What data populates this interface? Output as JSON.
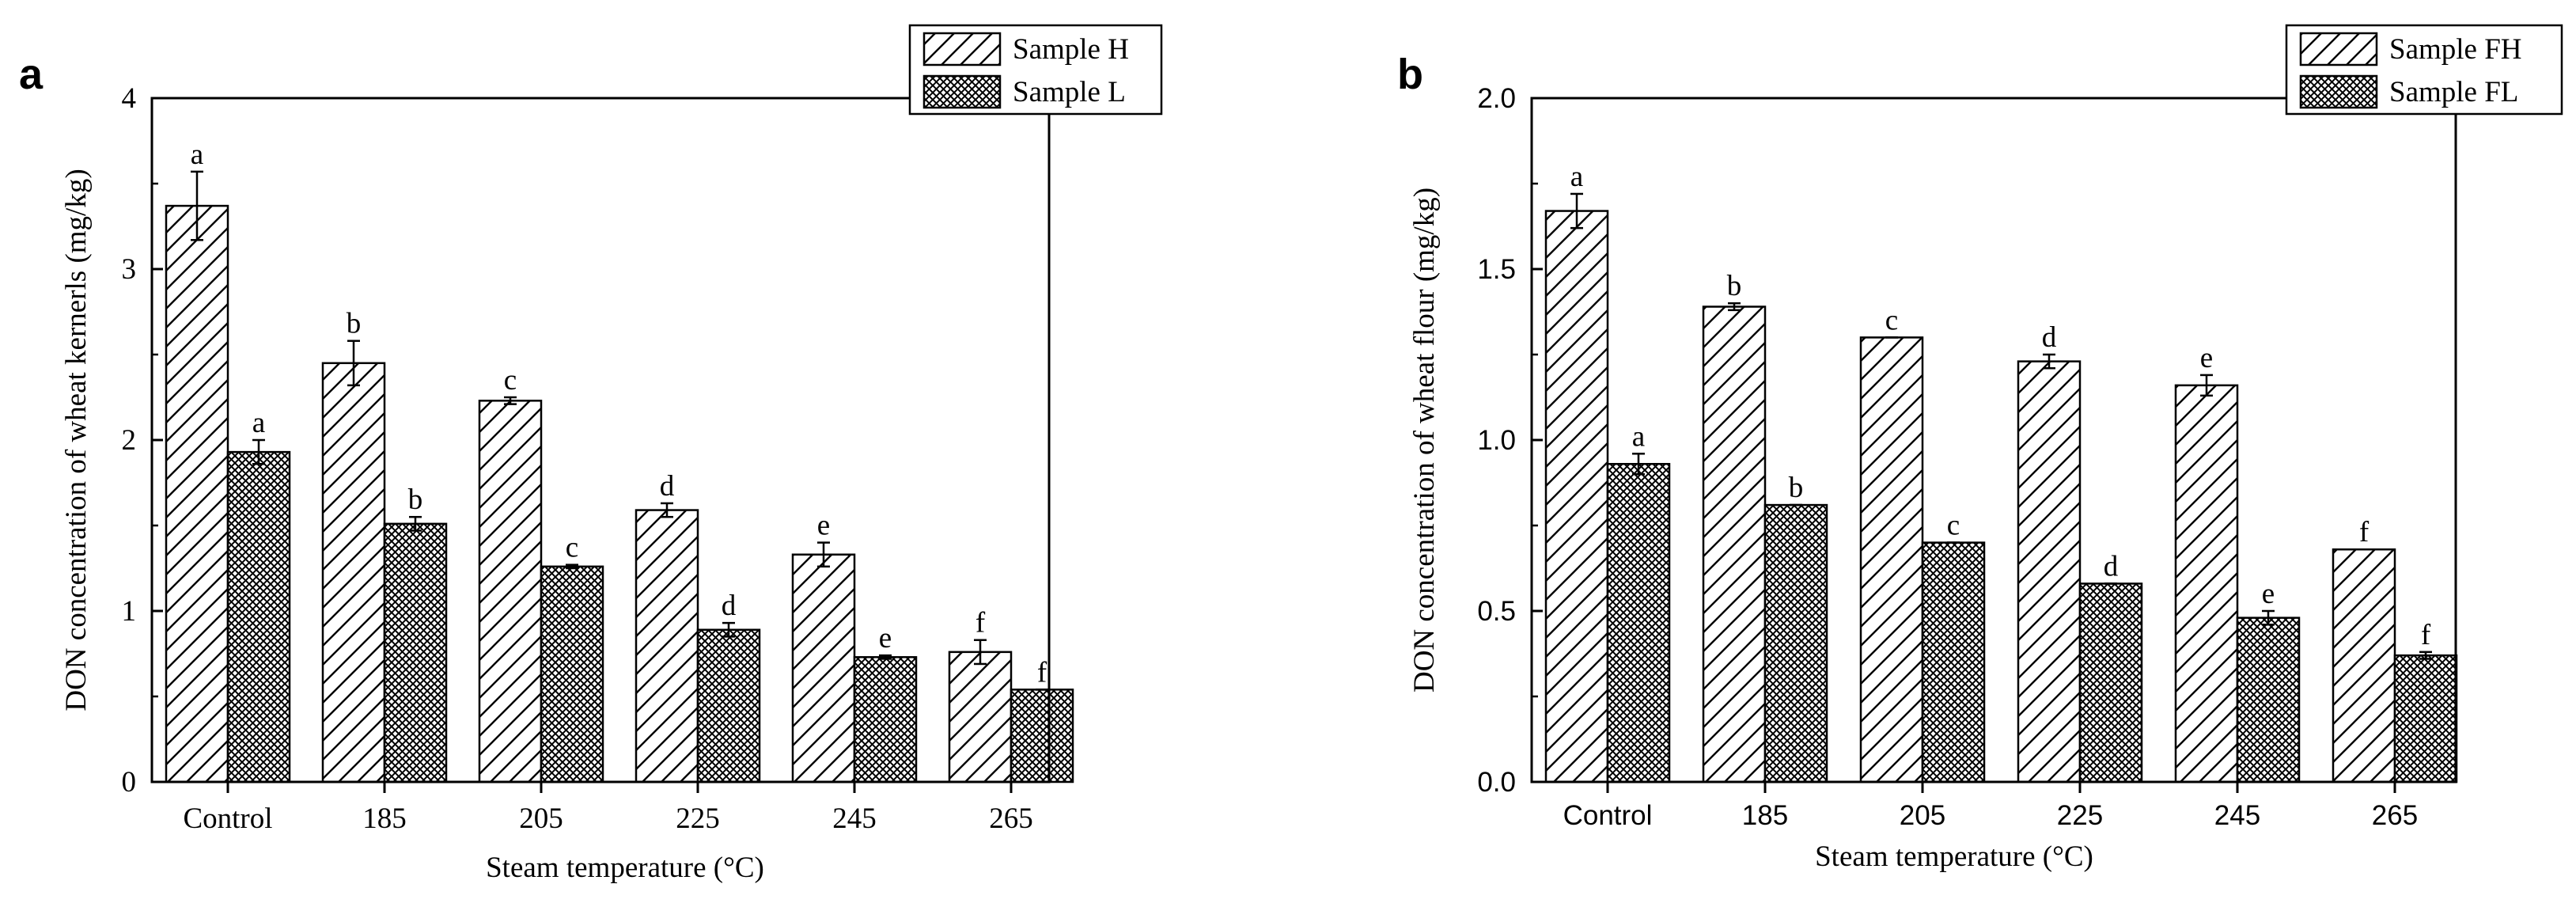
{
  "chart_data": [
    {
      "panel_label": "a",
      "type": "bar",
      "categories": [
        "Control",
        "185",
        "205",
        "225",
        "245",
        "265"
      ],
      "xlabel": "Steam temperature (°C)",
      "ylabel": "DON concentration of wheat kernerls (mg/kg)",
      "ylim": [
        0,
        4
      ],
      "yticks": [
        0,
        1,
        2,
        3,
        4
      ],
      "ytick_labels": [
        "0",
        "1",
        "2",
        "3",
        "4"
      ],
      "legend_position": "top-right",
      "series": [
        {
          "name": "Sample H",
          "pattern": "diagonal-hatch",
          "values": [
            3.37,
            2.45,
            2.23,
            1.59,
            1.33,
            0.76
          ],
          "errors": [
            0.2,
            0.13,
            0.02,
            0.04,
            0.07,
            0.07
          ],
          "letters": [
            "a",
            "b",
            "c",
            "d",
            "e",
            "f"
          ]
        },
        {
          "name": "Sample L",
          "pattern": "crosshatch",
          "values": [
            1.93,
            1.51,
            1.26,
            0.89,
            0.73,
            0.54
          ],
          "errors": [
            0.07,
            0.04,
            0.01,
            0.04,
            0.01,
            0.0
          ],
          "letters": [
            "a",
            "b",
            "c",
            "d",
            "e",
            "f"
          ]
        }
      ]
    },
    {
      "panel_label": "b",
      "type": "bar",
      "categories": [
        "Control",
        "185",
        "205",
        "225",
        "245",
        "265"
      ],
      "xlabel": "Steam temperature (°C)",
      "ylabel": "DON concentration of wheat flour (mg/kg)",
      "ylim": [
        0,
        2
      ],
      "yticks": [
        0,
        0.5,
        1,
        1.5,
        2
      ],
      "ytick_labels": [
        "0.0",
        "0.5",
        "1.0",
        "1.5",
        "2.0"
      ],
      "legend_position": "top-right",
      "series": [
        {
          "name": "Sample FH",
          "pattern": "diagonal-hatch",
          "values": [
            1.67,
            1.39,
            1.3,
            1.23,
            1.16,
            0.68
          ],
          "errors": [
            0.05,
            0.01,
            0.0,
            0.02,
            0.03,
            0.0
          ],
          "letters": [
            "a",
            "b",
            "c",
            "d",
            "e",
            "f"
          ]
        },
        {
          "name": "Sample FL",
          "pattern": "crosshatch",
          "values": [
            0.93,
            0.81,
            0.7,
            0.58,
            0.48,
            0.37
          ],
          "errors": [
            0.03,
            0.0,
            0.0,
            0.0,
            0.02,
            0.01
          ],
          "letters": [
            "a",
            "b",
            "c",
            "d",
            "e",
            "f"
          ]
        }
      ]
    }
  ]
}
